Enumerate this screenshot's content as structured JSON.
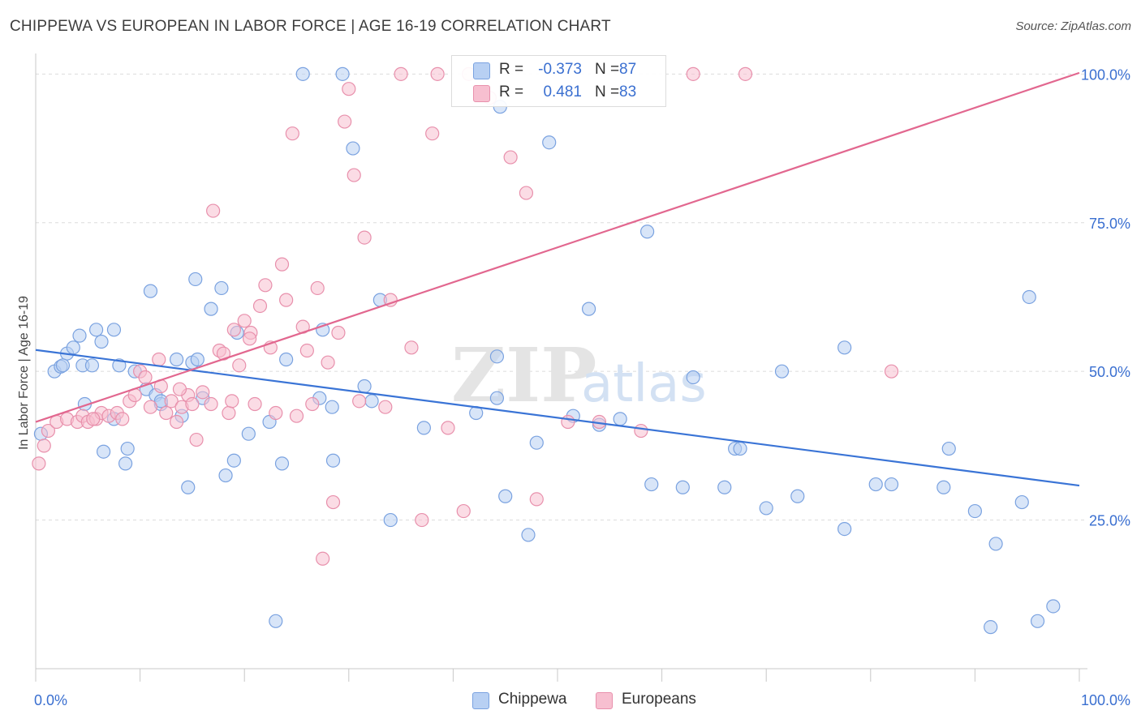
{
  "title": "CHIPPEWA VS EUROPEAN IN LABOR FORCE | AGE 16-19 CORRELATION CHART",
  "source": "Source: ZipAtlas.com",
  "watermark": {
    "zip": "ZIP",
    "atlas": "atlas"
  },
  "legend": {
    "rows": [
      {
        "r_label": "R =",
        "r_value": "-0.373",
        "n_label": "N =",
        "n_value": "87",
        "fill": "#b8d0f3",
        "stroke": "#7aa2e0"
      },
      {
        "r_label": "R =",
        "r_value": "0.481",
        "n_label": "N =",
        "n_value": "83",
        "fill": "#f7bfd0",
        "stroke": "#e890ac"
      }
    ]
  },
  "bottom_legend": [
    {
      "label": "Chippewa",
      "fill": "#b8d0f3",
      "stroke": "#7aa2e0"
    },
    {
      "label": "Europeans",
      "fill": "#f7bfd0",
      "stroke": "#e890ac"
    }
  ],
  "chart_data": {
    "type": "scatter",
    "title": "CHIPPEWA VS EUROPEAN IN LABOR FORCE | AGE 16-19 CORRELATION CHART",
    "xlabel": "",
    "ylabel": "In Labor Force | Age 16-19",
    "xlim": [
      0,
      100
    ],
    "ylim": [
      0,
      104
    ],
    "x_tick_labels": [
      {
        "value": 0,
        "label": "0.0%"
      },
      {
        "value": 100,
        "label": "100.0%"
      }
    ],
    "y_tick_labels": [
      {
        "value": 25,
        "label": "25.0%"
      },
      {
        "value": 50,
        "label": "50.0%"
      },
      {
        "value": 75,
        "label": "75.0%"
      },
      {
        "value": 100,
        "label": "100.0%"
      }
    ],
    "grid": "horizontal-dashed",
    "colors": {
      "chippewa": "#3a74d6",
      "europeans": "#e2678f",
      "tick_text": "#3a6fd0"
    },
    "series": [
      {
        "name": "Chippewa",
        "fill": "#b8d0f3",
        "stroke": "#7aa2e0",
        "trend": {
          "x": [
            0,
            100
          ],
          "y": [
            53.6,
            30.8
          ],
          "color": "#3a74d6"
        },
        "points": [
          [
            0.5,
            39.5
          ],
          [
            1.8,
            50.0
          ],
          [
            2.4,
            50.8
          ],
          [
            3.0,
            53.0
          ],
          [
            2.6,
            51.0
          ],
          [
            3.6,
            54.0
          ],
          [
            4.5,
            51.0
          ],
          [
            4.2,
            56.0
          ],
          [
            5.4,
            51.0
          ],
          [
            6.3,
            55.0
          ],
          [
            5.8,
            57.0
          ],
          [
            7.5,
            57.0
          ],
          [
            4.7,
            44.5
          ],
          [
            6.5,
            36.5
          ],
          [
            7.5,
            42.0
          ],
          [
            8.6,
            34.5
          ],
          [
            8.0,
            51.0
          ],
          [
            8.8,
            37.0
          ],
          [
            9.5,
            50.0
          ],
          [
            10.6,
            47.0
          ],
          [
            11.5,
            46.0
          ],
          [
            11.0,
            63.5
          ],
          [
            12.0,
            44.5
          ],
          [
            12.0,
            45.0
          ],
          [
            13.5,
            52.0
          ],
          [
            14.0,
            42.5
          ],
          [
            15.0,
            51.5
          ],
          [
            15.5,
            52.0
          ],
          [
            14.6,
            30.5
          ],
          [
            16.0,
            45.5
          ],
          [
            15.3,
            65.5
          ],
          [
            16.8,
            60.5
          ],
          [
            17.8,
            64.0
          ],
          [
            18.2,
            32.5
          ],
          [
            19.0,
            35.0
          ],
          [
            19.3,
            56.5
          ],
          [
            20.4,
            39.5
          ],
          [
            22.4,
            41.5
          ],
          [
            23.0,
            8.0
          ],
          [
            23.6,
            34.5
          ],
          [
            24.0,
            52.0
          ],
          [
            25.6,
            100.0
          ],
          [
            27.2,
            45.5
          ],
          [
            27.5,
            57.0
          ],
          [
            28.5,
            35.0
          ],
          [
            28.4,
            44.0
          ],
          [
            29.4,
            100.0
          ],
          [
            30.4,
            87.5
          ],
          [
            31.5,
            47.5
          ],
          [
            32.2,
            45.0
          ],
          [
            33.0,
            62.0
          ],
          [
            34.0,
            25.0
          ],
          [
            37.2,
            40.5
          ],
          [
            42.2,
            43.0
          ],
          [
            44.2,
            45.5
          ],
          [
            44.5,
            94.5
          ],
          [
            44.2,
            52.5
          ],
          [
            45.0,
            29.0
          ],
          [
            47.2,
            22.5
          ],
          [
            48.0,
            38.0
          ],
          [
            49.2,
            88.5
          ],
          [
            51.5,
            42.5
          ],
          [
            53.0,
            60.5
          ],
          [
            54.0,
            41.0
          ],
          [
            56.0,
            42.0
          ],
          [
            58.6,
            73.5
          ],
          [
            59.0,
            31.0
          ],
          [
            62.0,
            30.5
          ],
          [
            63.0,
            49.0
          ],
          [
            66.0,
            30.5
          ],
          [
            67.0,
            37.0
          ],
          [
            67.5,
            37.0
          ],
          [
            70.0,
            27.0
          ],
          [
            71.5,
            50.0
          ],
          [
            73.0,
            29.0
          ],
          [
            77.5,
            54.0
          ],
          [
            77.5,
            23.5
          ],
          [
            80.5,
            31.0
          ],
          [
            82.0,
            31.0
          ],
          [
            87.0,
            30.5
          ],
          [
            87.5,
            37.0
          ],
          [
            90.0,
            26.5
          ],
          [
            92.0,
            21.0
          ],
          [
            94.5,
            28.0
          ],
          [
            95.2,
            62.5
          ],
          [
            96.0,
            8.0
          ],
          [
            97.5,
            10.5
          ],
          [
            91.5,
            7.0
          ]
        ]
      },
      {
        "name": "Europeans",
        "fill": "#f7bfd0",
        "stroke": "#e890ac",
        "trend": {
          "x": [
            0,
            100
          ],
          "y": [
            41.5,
            100.2
          ],
          "color": "#e2678f"
        },
        "points": [
          [
            0.3,
            34.5
          ],
          [
            0.8,
            37.5
          ],
          [
            1.2,
            40.0
          ],
          [
            2.0,
            41.5
          ],
          [
            3.0,
            42.0
          ],
          [
            4.0,
            41.5
          ],
          [
            4.5,
            42.5
          ],
          [
            5.0,
            41.5
          ],
          [
            5.8,
            42.0
          ],
          [
            6.3,
            43.0
          ],
          [
            7.0,
            42.5
          ],
          [
            7.8,
            43.0
          ],
          [
            8.3,
            42.0
          ],
          [
            9.0,
            45.0
          ],
          [
            9.5,
            46.0
          ],
          [
            10.0,
            50.0
          ],
          [
            10.5,
            49.0
          ],
          [
            11.0,
            44.0
          ],
          [
            11.8,
            52.0
          ],
          [
            12.0,
            47.5
          ],
          [
            12.5,
            43.0
          ],
          [
            13.0,
            45.0
          ],
          [
            13.5,
            41.5
          ],
          [
            14.0,
            44.0
          ],
          [
            14.6,
            46.0
          ],
          [
            15.0,
            44.5
          ],
          [
            15.4,
            38.5
          ],
          [
            16.0,
            46.5
          ],
          [
            16.8,
            44.5
          ],
          [
            17.0,
            77.0
          ],
          [
            17.6,
            53.5
          ],
          [
            18.0,
            53.0
          ],
          [
            18.5,
            43.0
          ],
          [
            19.0,
            57.0
          ],
          [
            19.5,
            51.0
          ],
          [
            20.0,
            58.5
          ],
          [
            20.6,
            56.5
          ],
          [
            21.0,
            44.5
          ],
          [
            21.5,
            61.0
          ],
          [
            22.0,
            64.5
          ],
          [
            22.5,
            54.0
          ],
          [
            23.0,
            43.0
          ],
          [
            23.6,
            68.0
          ],
          [
            24.0,
            62.0
          ],
          [
            24.6,
            90.0
          ],
          [
            25.0,
            42.5
          ],
          [
            25.6,
            57.5
          ],
          [
            26.0,
            53.5
          ],
          [
            26.5,
            44.5
          ],
          [
            27.0,
            64.0
          ],
          [
            27.5,
            18.5
          ],
          [
            28.0,
            51.5
          ],
          [
            28.5,
            28.0
          ],
          [
            29.0,
            56.5
          ],
          [
            29.6,
            92.0
          ],
          [
            30.0,
            97.5
          ],
          [
            30.5,
            83.0
          ],
          [
            31.0,
            45.0
          ],
          [
            31.5,
            72.5
          ],
          [
            33.5,
            44.0
          ],
          [
            34.0,
            62.0
          ],
          [
            36.0,
            54.0
          ],
          [
            35.0,
            100.0
          ],
          [
            37.0,
            25.0
          ],
          [
            38.0,
            90.0
          ],
          [
            38.5,
            100.0
          ],
          [
            39.5,
            40.5
          ],
          [
            41.0,
            26.5
          ],
          [
            41.5,
            100.0
          ],
          [
            43.5,
            96.0
          ],
          [
            45.5,
            86.0
          ],
          [
            47.0,
            80.0
          ],
          [
            48.0,
            28.5
          ],
          [
            51.0,
            41.5
          ],
          [
            54.0,
            41.5
          ],
          [
            58.0,
            40.0
          ],
          [
            63.0,
            100.0
          ],
          [
            68.0,
            100.0
          ],
          [
            82.0,
            50.0
          ],
          [
            20.5,
            55.5
          ],
          [
            18.8,
            45.0
          ],
          [
            13.8,
            47.0
          ],
          [
            5.5,
            42.0
          ]
        ]
      }
    ]
  }
}
